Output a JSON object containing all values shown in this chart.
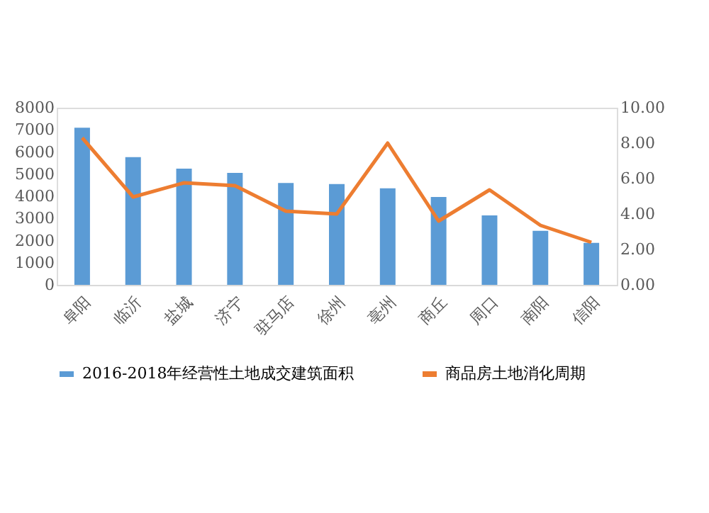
{
  "chart_data": {
    "type": "bar",
    "categories": [
      "阜阳",
      "临沂",
      "盐城",
      "济宁",
      "驻马店",
      "徐州",
      "亳州",
      "商丘",
      "周口",
      "南阳",
      "信阳"
    ],
    "series": [
      {
        "name": "2016-2018年经营性土地成交建筑面积",
        "color": "#5b9bd5",
        "values": [
          7100,
          5770,
          5250,
          5060,
          4600,
          4550,
          4360,
          3970,
          3140,
          2440,
          1900
        ]
      },
      {
        "name": "商品房土地消化周期",
        "type": "line",
        "axis": "y2",
        "color": "#ed7d31",
        "values": [
          8.3,
          4.96,
          5.76,
          5.6,
          4.16,
          4.0,
          8.0,
          3.6,
          5.36,
          3.36,
          2.4
        ]
      }
    ],
    "ylim": [
      0,
      8000
    ],
    "yticks": [
      0,
      1000,
      2000,
      3000,
      4000,
      5000,
      6000,
      7000,
      8000
    ],
    "y2lim": [
      0,
      10
    ],
    "y2ticks": [
      {
        "value": 0,
        "label": "0.00"
      },
      {
        "value": 2,
        "label": "2.00"
      },
      {
        "value": 4,
        "label": "4.00"
      },
      {
        "value": 6,
        "label": "6.00"
      },
      {
        "value": 8,
        "label": "8.00"
      },
      {
        "value": 10,
        "label": "10.00"
      }
    ],
    "legend": "bottom",
    "grid": false
  }
}
